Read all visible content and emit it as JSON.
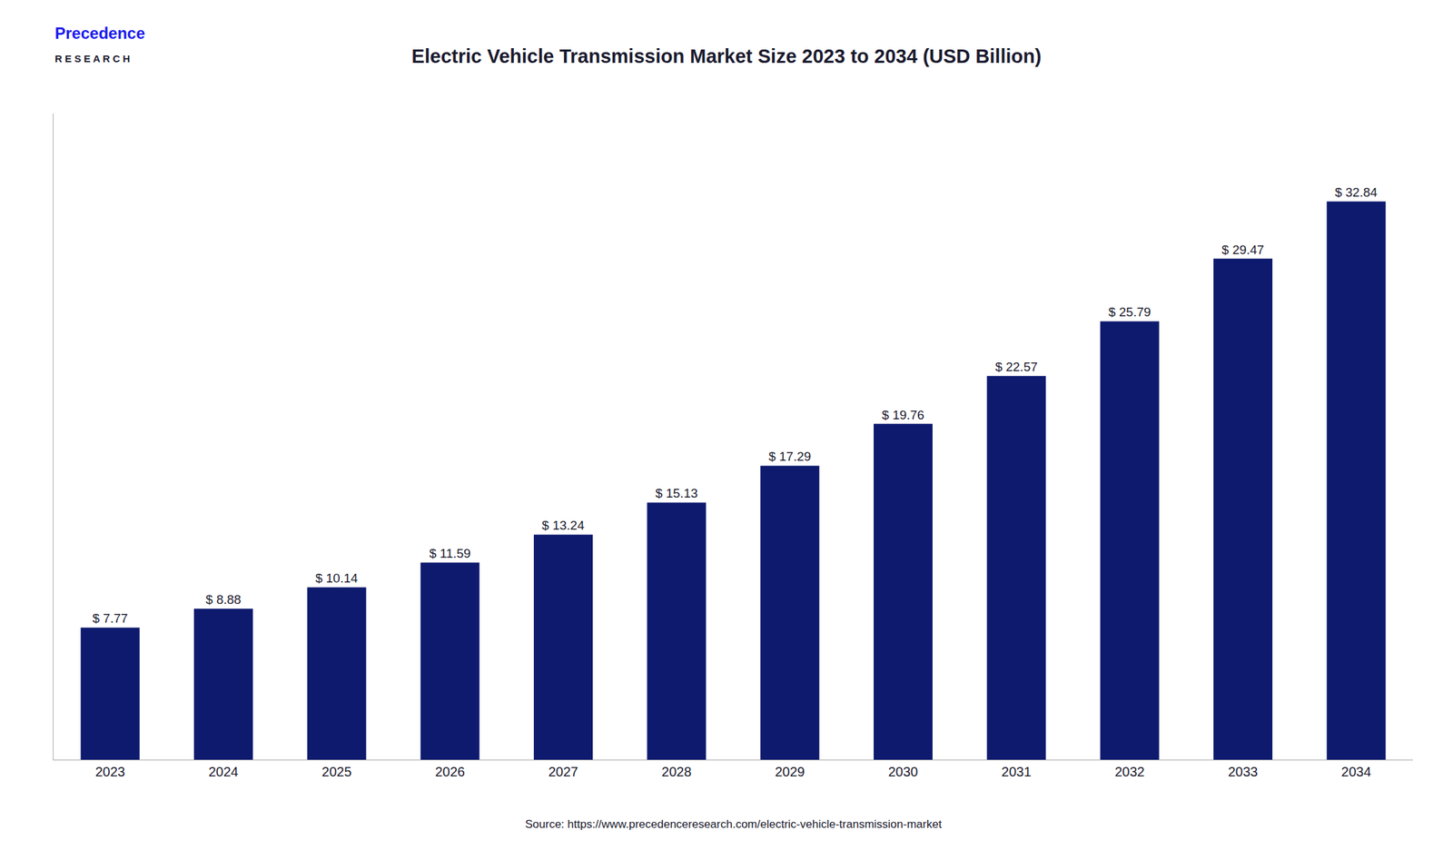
{
  "chart_data": {
    "type": "bar",
    "title": "Electric Vehicle Transmission Market Size 2023 to 2034 (USD Billion)",
    "annotations": [
      "Precedence",
      "R E S E A R C H",
      "Source: https://www.precedenceresearch.com/electric-vehicle-transmission-market"
    ],
    "categories": [
      "2023",
      "2024",
      "2025",
      "2026",
      "2027",
      "2028",
      "2029",
      "2030",
      "2031",
      "2032",
      "2033",
      "2034"
    ],
    "values": [
      7.77,
      8.88,
      10.14,
      11.59,
      13.24,
      15.13,
      17.29,
      19.76,
      22.57,
      25.79,
      29.47,
      32.84
    ],
    "value_labels": [
      "$ 7.77",
      "$ 8.88",
      "$ 10.14",
      "$ 11.59",
      "$ 13.24",
      "$ 15.13",
      "$ 17.29",
      "$ 19.76",
      "$ 22.57",
      "$ 25.79",
      "$ 29.47",
      "$ 32.84"
    ],
    "data_labels": true,
    "color": "#0d1a6e",
    "ylim": [
      0,
      38
    ],
    "grid": false,
    "tick_labels": "x"
  }
}
